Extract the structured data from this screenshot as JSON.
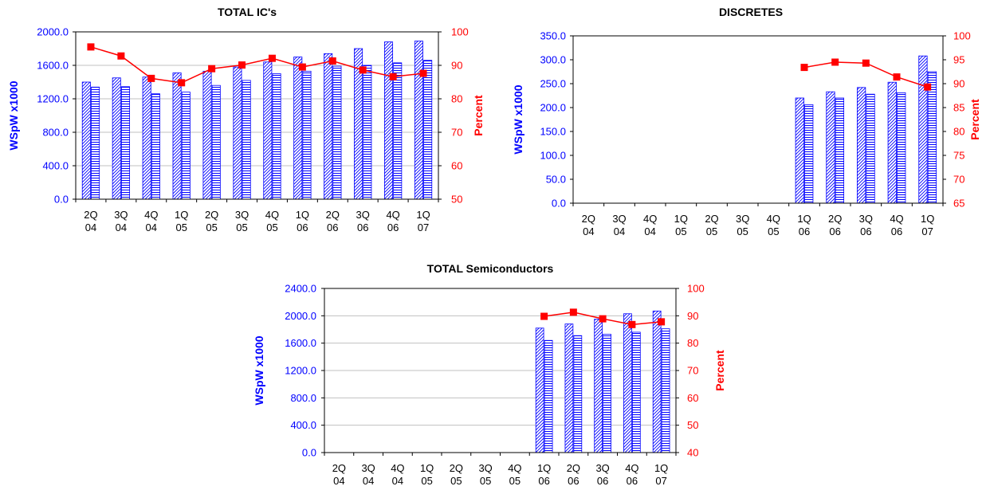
{
  "colors": {
    "capacity_bar": "#0000ff",
    "actual_bar": "#0000ff",
    "utilization_line": "#ff0000",
    "left_axis": "#0000ff",
    "right_axis": "#ff0000",
    "grid": "#c0c0c0"
  },
  "chart_data": [
    {
      "type": "bar",
      "title": "TOTAL IC's",
      "ylabel": "WSpW x1000",
      "y2label": "Percent",
      "ylim": [
        0,
        2000
      ],
      "y2lim": [
        50,
        100
      ],
      "yticks": [
        "0.0",
        "400.0",
        "800.0",
        "1200.0",
        "1600.0",
        "2000.0"
      ],
      "y2ticks": [
        "50",
        "60",
        "70",
        "80",
        "90",
        "100"
      ],
      "categories": [
        [
          "2Q",
          "04"
        ],
        [
          "3Q",
          "04"
        ],
        [
          "4Q",
          "04"
        ],
        [
          "1Q",
          "05"
        ],
        [
          "2Q",
          "05"
        ],
        [
          "3Q",
          "05"
        ],
        [
          "4Q",
          "05"
        ],
        [
          "1Q",
          "06"
        ],
        [
          "2Q",
          "06"
        ],
        [
          "3Q",
          "06"
        ],
        [
          "4Q",
          "06"
        ],
        [
          "1Q",
          "07"
        ]
      ],
      "grid": true,
      "series": [
        {
          "kind": "bar",
          "pattern": "diagonal",
          "values": [
            1400,
            1450,
            1460,
            1510,
            1530,
            1580,
            1640,
            1700,
            1740,
            1800,
            1880,
            1890
          ]
        },
        {
          "kind": "bar",
          "pattern": "horizontal",
          "values": [
            1340,
            1345,
            1260,
            1280,
            1360,
            1420,
            1500,
            1530,
            1590,
            1600,
            1630,
            1660
          ]
        },
        {
          "kind": "line",
          "axis": "right",
          "values": [
            95.5,
            92.8,
            86.1,
            84.8,
            89.0,
            90.1,
            92.1,
            89.5,
            91.3,
            88.6,
            86.6,
            87.6
          ]
        }
      ]
    },
    {
      "type": "bar",
      "title": "DISCRETES",
      "ylabel": "WSpW x1000",
      "y2label": "Percent",
      "ylim": [
        0,
        350
      ],
      "y2lim": [
        65,
        100
      ],
      "yticks": [
        "0.0",
        "50.0",
        "100.0",
        "150.0",
        "200.0",
        "250.0",
        "300.0",
        "350.0"
      ],
      "y2ticks": [
        "65",
        "70",
        "75",
        "80",
        "85",
        "90",
        "95",
        "100"
      ],
      "categories": [
        [
          "2Q",
          "04"
        ],
        [
          "3Q",
          "04"
        ],
        [
          "4Q",
          "04"
        ],
        [
          "1Q",
          "05"
        ],
        [
          "2Q",
          "05"
        ],
        [
          "3Q",
          "05"
        ],
        [
          "4Q",
          "05"
        ],
        [
          "1Q",
          "06"
        ],
        [
          "2Q",
          "06"
        ],
        [
          "3Q",
          "06"
        ],
        [
          "4Q",
          "06"
        ],
        [
          "1Q",
          "07"
        ]
      ],
      "grid": false,
      "series": [
        {
          "kind": "bar",
          "pattern": "diagonal",
          "values": [
            null,
            null,
            null,
            null,
            null,
            null,
            null,
            220,
            233,
            242,
            253,
            308
          ]
        },
        {
          "kind": "bar",
          "pattern": "horizontal",
          "values": [
            null,
            null,
            null,
            null,
            null,
            null,
            null,
            206,
            220,
            228,
            231,
            275
          ]
        },
        {
          "kind": "line",
          "axis": "right",
          "values": [
            null,
            null,
            null,
            null,
            null,
            null,
            null,
            93.4,
            94.5,
            94.3,
            91.4,
            89.3
          ]
        }
      ]
    },
    {
      "type": "bar",
      "title": "TOTAL Semiconductors",
      "ylabel": "WSpW x1000",
      "y2label": "Percent",
      "ylim": [
        0,
        2400
      ],
      "y2lim": [
        40,
        100
      ],
      "yticks": [
        "0.0",
        "400.0",
        "800.0",
        "1200.0",
        "1600.0",
        "2000.0",
        "2400.0"
      ],
      "y2ticks": [
        "40",
        "50",
        "60",
        "70",
        "80",
        "90",
        "100"
      ],
      "categories": [
        [
          "2Q",
          "04"
        ],
        [
          "3Q",
          "04"
        ],
        [
          "4Q",
          "04"
        ],
        [
          "1Q",
          "05"
        ],
        [
          "2Q",
          "05"
        ],
        [
          "3Q",
          "05"
        ],
        [
          "4Q",
          "05"
        ],
        [
          "1Q",
          "06"
        ],
        [
          "2Q",
          "06"
        ],
        [
          "3Q",
          "06"
        ],
        [
          "4Q",
          "06"
        ],
        [
          "1Q",
          "07"
        ]
      ],
      "grid": true,
      "series": [
        {
          "kind": "bar",
          "pattern": "diagonal",
          "values": [
            null,
            null,
            null,
            null,
            null,
            null,
            null,
            1820,
            1880,
            1950,
            2030,
            2070
          ]
        },
        {
          "kind": "bar",
          "pattern": "horizontal",
          "values": [
            null,
            null,
            null,
            null,
            null,
            null,
            null,
            1640,
            1710,
            1730,
            1760,
            1810
          ]
        },
        {
          "kind": "line",
          "axis": "right",
          "values": [
            null,
            null,
            null,
            null,
            null,
            null,
            null,
            89.8,
            91.3,
            88.9,
            86.8,
            87.8
          ]
        }
      ]
    }
  ]
}
